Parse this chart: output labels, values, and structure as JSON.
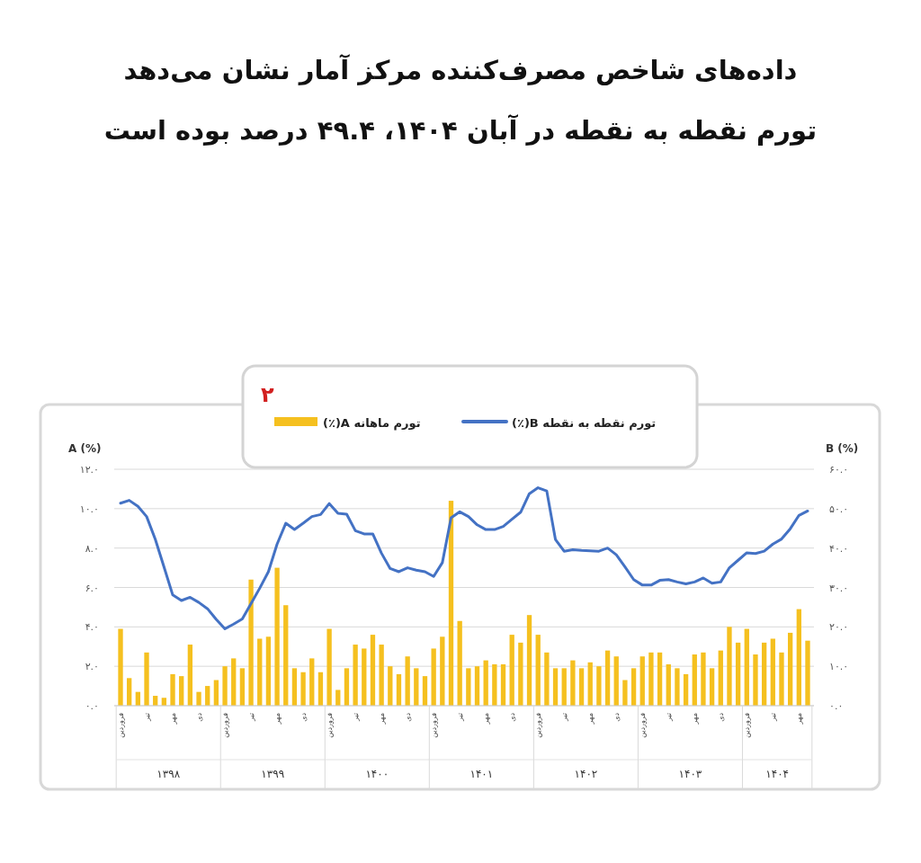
{
  "chart_data": {
    "type": "bar",
    "title": "داده‌های شاخص مصرف‌کننده مرکز آمار نشان می‌دهد",
    "subtitle": "تورم نقطه به نقطه در آبان ۱۴۰۴، ۴۹.۴ درصد بوده است",
    "ylabel": "A (%)",
    "y2label": "B (%)",
    "categories": [
      "فروردین",
      null,
      null,
      "تیر",
      null,
      null,
      "مهر",
      null,
      null,
      "دی",
      null,
      null,
      "فروردین",
      null,
      null,
      "تیر",
      null,
      null,
      "مهر",
      null,
      null,
      "دی",
      null,
      null,
      "فروردین",
      null,
      null,
      "تیر",
      null,
      null,
      "مهر",
      null,
      null,
      "دی",
      null,
      null,
      "فروردین",
      null,
      null,
      "تیر",
      null,
      null,
      "مهر",
      null,
      null,
      "دی",
      null,
      null,
      "فروردین",
      null,
      null,
      "تیر",
      null,
      null,
      "مهر",
      null,
      null,
      "دی",
      null,
      null,
      "فروردین",
      null,
      null,
      "تیر",
      null,
      null,
      "مهر",
      null,
      null,
      "دی",
      null,
      null,
      "فروردین",
      null,
      null,
      "تیر",
      null,
      null,
      "مهر",
      null
    ],
    "series": [
      {
        "name": "تورم ماهانه A(٪)",
        "color": "#f5c01f",
        "values": [
          3.9,
          1.4,
          0.7,
          2.7,
          0.5,
          0.4,
          1.6,
          1.5,
          3.1,
          0.7,
          1.0,
          1.3,
          2.0,
          2.4,
          1.9,
          6.4,
          3.4,
          3.5,
          7.0,
          5.1,
          1.9,
          1.7,
          2.4,
          1.7,
          3.9,
          0.8,
          1.9,
          3.1,
          2.9,
          3.6,
          3.1,
          2.0,
          1.6,
          2.5,
          1.9,
          1.5,
          2.9,
          3.5,
          10.4,
          4.3,
          1.9,
          2.0,
          2.3,
          2.1,
          2.1,
          3.6,
          3.2,
          4.6,
          3.6,
          2.7,
          1.9,
          1.9,
          2.3,
          1.9,
          2.2,
          2.0,
          2.8,
          2.5,
          1.3,
          1.9,
          2.5,
          2.7,
          2.7,
          2.1,
          1.9,
          1.6,
          2.6,
          2.7,
          1.9,
          2.8,
          4.0,
          3.2,
          3.9,
          2.6,
          3.2,
          3.4,
          2.7,
          3.7,
          4.9,
          3.3
        ]
      },
      {
        "name": "تورم نقطه به نقطه B(٪)",
        "type": "line",
        "axis": "y2",
        "color": "#4472c4",
        "values": [
          51.4,
          52.1,
          50.6,
          48.0,
          42.2,
          35.2,
          28.1,
          26.7,
          27.5,
          26.2,
          24.6,
          21.9,
          19.5,
          20.7,
          22.0,
          25.9,
          29.8,
          34.0,
          41.0,
          46.3,
          44.7,
          46.3,
          48.0,
          48.5,
          51.3,
          48.8,
          48.6,
          44.4,
          43.6,
          43.6,
          38.7,
          34.8,
          34.0,
          35.0,
          34.4,
          34.0,
          32.8,
          36.3,
          47.7,
          49.2,
          48.0,
          45.9,
          44.7,
          44.7,
          45.5,
          47.3,
          49.1,
          53.8,
          55.3,
          54.5,
          42.2,
          39.2,
          39.6,
          39.4,
          39.3,
          39.2,
          40.0,
          38.3,
          35.2,
          32.0,
          30.6,
          30.6,
          31.8,
          32.0,
          31.4,
          30.9,
          31.4,
          32.4,
          31.1,
          31.4,
          35.0,
          36.9,
          38.8,
          38.6,
          39.2,
          41.0,
          42.3,
          44.9,
          48.3,
          49.4
        ]
      }
    ],
    "ylim": [
      0,
      12
    ],
    "yticks": [
      {
        "value": 0,
        "label": "۰.۰"
      },
      {
        "value": 2,
        "label": "۲.۰"
      },
      {
        "value": 4,
        "label": "۴.۰"
      },
      {
        "value": 6,
        "label": "۶.۰"
      },
      {
        "value": 8,
        "label": "۸.۰"
      },
      {
        "value": 10,
        "label": "۱۰.۰"
      },
      {
        "value": 12,
        "label": "۱۲.۰"
      }
    ],
    "y2lim": [
      0,
      60
    ],
    "y2ticks": [
      {
        "value": 0,
        "label": "۰.۰"
      },
      {
        "value": 10,
        "label": "۱۰.۰"
      },
      {
        "value": 20,
        "label": "۲۰.۰"
      },
      {
        "value": 30,
        "label": "۳۰.۰"
      },
      {
        "value": 40,
        "label": "۴۰.۰"
      },
      {
        "value": 50,
        "label": "۵۰.۰"
      },
      {
        "value": 60,
        "label": "۶۰.۰"
      }
    ],
    "annotations": [
      "۲",
      "۱۳۹۸",
      "۱۳۹۹",
      "۱۴۰۰",
      "۱۴۰۱",
      "۱۴۰۲",
      "۱۴۰۳",
      "۱۴۰۴"
    ],
    "grid": "y",
    "legend": "top"
  }
}
